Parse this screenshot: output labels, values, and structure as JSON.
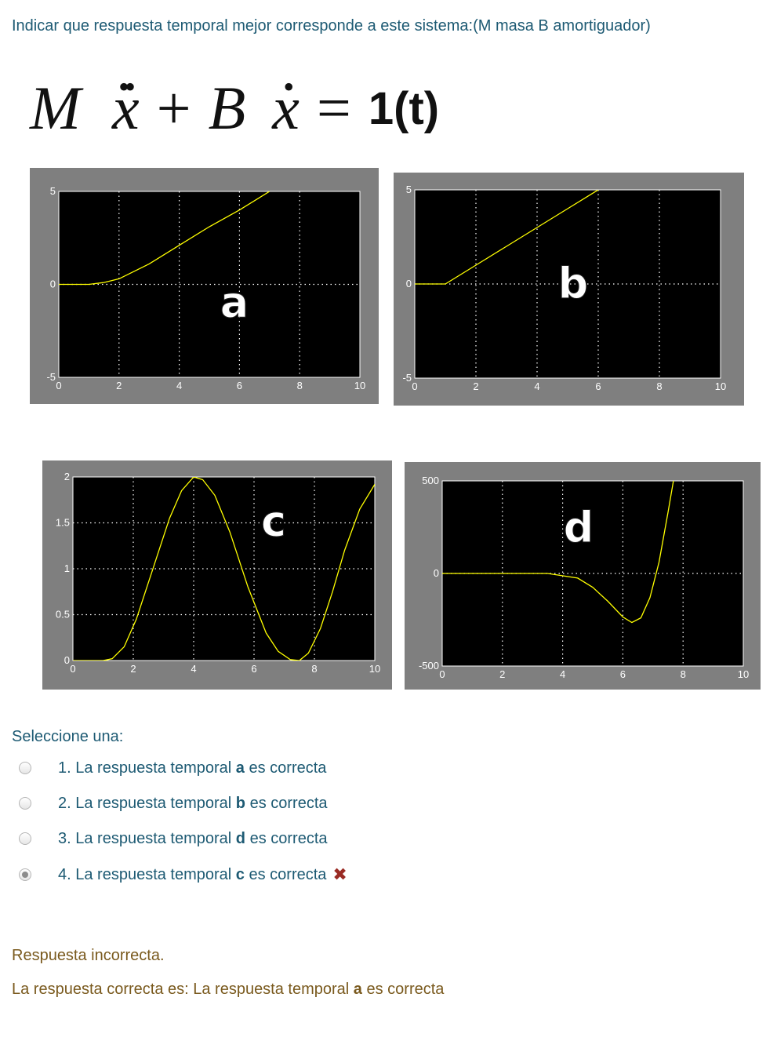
{
  "question": {
    "text": "Indicar que respuesta temporal mejor corresponde a este sistema:(M masa B amortiguador)",
    "equation": {
      "m": "M",
      "x_ddot": "x",
      "plus": "+",
      "b": "B",
      "x_dot": "x",
      "equals": "=",
      "rhs": "1(t)"
    }
  },
  "plots": [
    {
      "id": "a",
      "overlay_label": "a",
      "chart_data": {
        "type": "line",
        "xlim": [
          0,
          10
        ],
        "ylim": [
          -5,
          5
        ],
        "x_ticks": [
          "0",
          "2",
          "4",
          "6",
          "8",
          "10"
        ],
        "y_ticks": [
          "5",
          "0",
          "-5"
        ],
        "grid": "dotted",
        "series": [
          {
            "color": "#ffff00",
            "x": [
              0,
              1,
              1.5,
              2,
              3,
              4,
              5,
              6,
              7
            ],
            "y": [
              0,
              0,
              0.1,
              0.3,
              1.1,
              2.1,
              3.1,
              4.0,
              5.0
            ]
          }
        ]
      }
    },
    {
      "id": "b",
      "overlay_label": "b",
      "chart_data": {
        "type": "line",
        "xlim": [
          0,
          10
        ],
        "ylim": [
          -5,
          5
        ],
        "x_ticks": [
          "0",
          "2",
          "4",
          "6",
          "8",
          "10"
        ],
        "y_ticks": [
          "5",
          "0",
          "-5"
        ],
        "grid": "dotted",
        "series": [
          {
            "color": "#ffff00",
            "x": [
              0,
              1,
              2,
              3,
              4,
              5,
              6
            ],
            "y": [
              0,
              0,
              1.0,
              2.0,
              3.0,
              4.0,
              5.0
            ]
          }
        ]
      }
    },
    {
      "id": "c",
      "overlay_label": "c",
      "chart_data": {
        "type": "line",
        "xlim": [
          0,
          10
        ],
        "ylim": [
          0,
          2
        ],
        "x_ticks": [
          "0",
          "2",
          "4",
          "6",
          "8",
          "10"
        ],
        "y_ticks": [
          "2",
          "1.5",
          "1",
          "0.5",
          "0"
        ],
        "grid": "dotted",
        "series": [
          {
            "color": "#ffff00",
            "x": [
              0,
              1,
              1.3,
              1.7,
              2.1,
              2.6,
              3.2,
              3.6,
              4.0,
              4.3,
              4.7,
              5.2,
              5.8,
              6.4,
              6.8,
              7.2,
              7.5,
              7.8,
              8.2,
              8.6,
              9.0,
              9.5,
              10
            ],
            "y": [
              0,
              0,
              0.02,
              0.15,
              0.45,
              0.95,
              1.55,
              1.85,
              2.0,
              1.97,
              1.8,
              1.4,
              0.8,
              0.3,
              0.1,
              0.01,
              0.0,
              0.08,
              0.35,
              0.75,
              1.2,
              1.65,
              1.92
            ]
          }
        ]
      }
    },
    {
      "id": "d",
      "overlay_label": "d",
      "chart_data": {
        "type": "line",
        "xlim": [
          0,
          10
        ],
        "ylim": [
          -500,
          500
        ],
        "x_ticks": [
          "0",
          "2",
          "4",
          "6",
          "8",
          "10"
        ],
        "y_ticks": [
          "500",
          "0",
          "-500"
        ],
        "grid": "dotted",
        "series": [
          {
            "color": "#ffff00",
            "x": [
              0,
              2,
              3.5,
              4.5,
              5.0,
              5.5,
              6.0,
              6.3,
              6.6,
              6.9,
              7.2,
              7.5,
              7.7
            ],
            "y": [
              0,
              0,
              0,
              -25,
              -75,
              -150,
              -235,
              -265,
              -240,
              -130,
              60,
              330,
              520
            ]
          }
        ]
      }
    }
  ],
  "prompt": "Seleccione una:",
  "options": [
    {
      "prefix": "1. La respuesta temporal ",
      "bold": "a",
      "suffix": " es correcta"
    },
    {
      "prefix": "2. La respuesta temporal ",
      "bold": "b",
      "suffix": " es correcta"
    },
    {
      "prefix": "3. La respuesta temporal ",
      "bold": "d",
      "suffix": " es correcta"
    },
    {
      "prefix": "4. La respuesta temporal ",
      "bold": "c",
      "suffix": " es correcta",
      "selected": true,
      "mark": "✖"
    }
  ],
  "feedback": {
    "status": "Respuesta incorrecta.",
    "correct_prefix": "La respuesta correcta es: La respuesta temporal ",
    "correct_bold": "a",
    "correct_suffix": " es correcta"
  },
  "colors": {
    "text_blue": "#1d5a73",
    "feedback_brown": "#7a5a1e",
    "wrong_red": "#9a2b24",
    "plot_frame": "#7f7f7f",
    "plot_bg": "#000000",
    "trace": "#ffff00"
  },
  "icons": {
    "wrong": "x-mark-icon",
    "radio": "radio-button-icon"
  }
}
